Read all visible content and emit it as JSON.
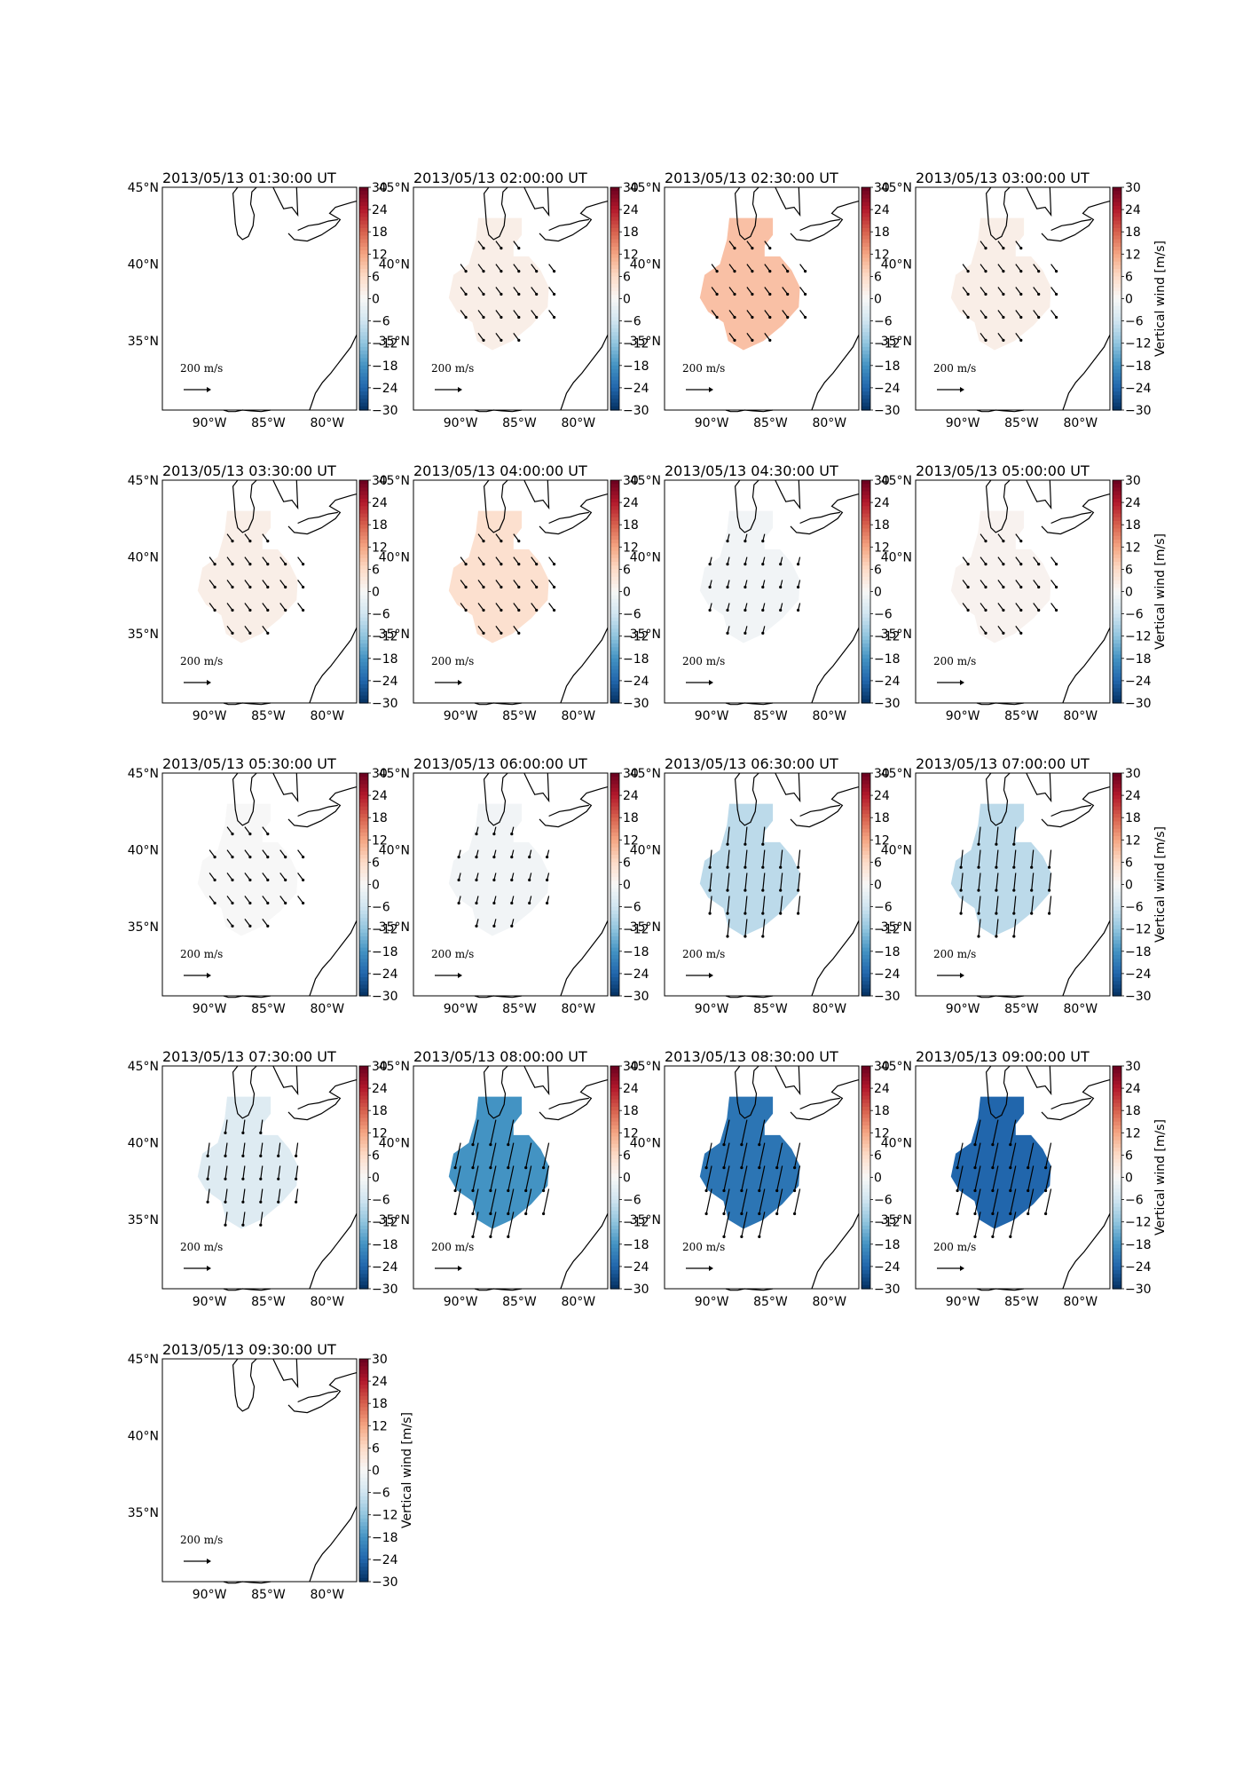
{
  "figure": {
    "lat_ticks": [
      "45°N",
      "40°N",
      "35°N"
    ],
    "lon_ticks": [
      "90°W",
      "85°W",
      "80°W"
    ],
    "colorbar_ticks": [
      "30",
      "24",
      "18",
      "12",
      "6",
      "0",
      "−6",
      "−12",
      "−18",
      "−24",
      "−30"
    ],
    "colorbar_label": "Vertical wind [m/s]",
    "colormap": "RdBu_r",
    "colorbar_range": [
      -30,
      30
    ],
    "quiver_key_label": "200 m/s",
    "quiver_key_value": 200
  },
  "chart_data": {
    "type": "heatmap",
    "variable": "Vertical wind [m/s]",
    "panels": [
      {
        "title": "2013/05/13 01:30:00 UT",
        "wind": null,
        "has_data": false
      },
      {
        "title": "2013/05/13 02:00:00 UT",
        "wind": 2,
        "has_data": true
      },
      {
        "title": "2013/05/13 02:30:00 UT",
        "wind": 9,
        "has_data": true
      },
      {
        "title": "2013/05/13 03:00:00 UT",
        "wind": 2,
        "has_data": true
      },
      {
        "title": "2013/05/13 03:30:00 UT",
        "wind": 2,
        "has_data": true
      },
      {
        "title": "2013/05/13 04:00:00 UT",
        "wind": 5,
        "has_data": true
      },
      {
        "title": "2013/05/13 04:30:00 UT",
        "wind": -1,
        "has_data": true
      },
      {
        "title": "2013/05/13 05:00:00 UT",
        "wind": 1,
        "has_data": true
      },
      {
        "title": "2013/05/13 05:30:00 UT",
        "wind": 0,
        "has_data": true
      },
      {
        "title": "2013/05/13 06:00:00 UT",
        "wind": -1,
        "has_data": true
      },
      {
        "title": "2013/05/13 06:30:00 UT",
        "wind": -8,
        "has_data": true
      },
      {
        "title": "2013/05/13 07:00:00 UT",
        "wind": -8,
        "has_data": true
      },
      {
        "title": "2013/05/13 07:30:00 UT",
        "wind": -4,
        "has_data": true
      },
      {
        "title": "2013/05/13 08:00:00 UT",
        "wind": -18,
        "has_data": true
      },
      {
        "title": "2013/05/13 08:30:00 UT",
        "wind": -22,
        "has_data": true
      },
      {
        "title": "2013/05/13 09:00:00 UT",
        "wind": -24,
        "has_data": true
      },
      {
        "title": "2013/05/13 09:30:00 UT",
        "wind": null,
        "has_data": false
      }
    ]
  }
}
